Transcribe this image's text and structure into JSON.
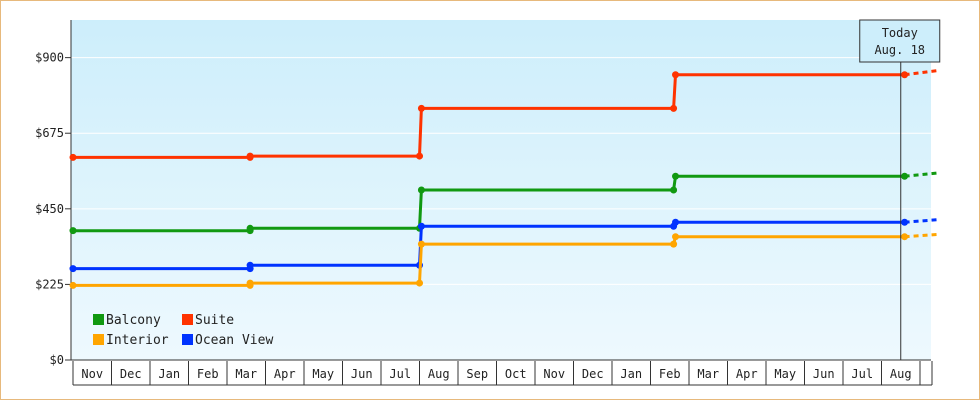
{
  "chart_data": {
    "type": "line",
    "title": "",
    "xlabel": "",
    "ylabel": "",
    "ylim": [
      0,
      1012
    ],
    "y_ticks": [
      "$0",
      "$225",
      "$450",
      "$675",
      "$900"
    ],
    "y_tick_values": [
      0,
      225,
      450,
      675,
      900
    ],
    "x_months": [
      "Nov",
      "Dec",
      "Jan",
      "Feb",
      "Mar",
      "Apr",
      "May",
      "Jun",
      "Jul",
      "Aug",
      "Sep",
      "Oct",
      "Nov",
      "Dec",
      "Jan",
      "Feb",
      "Mar",
      "Apr",
      "May",
      "Jun",
      "Jul",
      "Aug"
    ],
    "today_marker": {
      "line1": "Today",
      "line2": "Aug. 18",
      "month_index": 21.5
    },
    "grid": "horizontal",
    "legend_position": "bottom-left",
    "series": [
      {
        "name": "Suite",
        "color": "#ff3300",
        "points": [
          [
            0,
            603
          ],
          [
            4.6,
            603
          ],
          [
            4.6,
            607
          ],
          [
            9.0,
            607
          ],
          [
            9.05,
            749
          ],
          [
            15.6,
            749
          ],
          [
            15.65,
            849
          ],
          [
            21.6,
            849
          ]
        ],
        "markers": [
          0,
          1,
          2,
          3,
          4,
          5,
          6,
          7
        ],
        "projection": [
          21.6,
          849,
          22.5,
          862
        ]
      },
      {
        "name": "Balcony",
        "color": "#119911",
        "points": [
          [
            0,
            385
          ],
          [
            4.6,
            385
          ],
          [
            4.6,
            392
          ],
          [
            9.0,
            392
          ],
          [
            9.05,
            506
          ],
          [
            15.6,
            506
          ],
          [
            15.65,
            547
          ],
          [
            21.6,
            547
          ]
        ],
        "markers": [
          0,
          1,
          2,
          3,
          4,
          5,
          6,
          7
        ],
        "projection": [
          21.6,
          547,
          22.5,
          557
        ]
      },
      {
        "name": "Ocean View",
        "color": "#0033ff",
        "points": [
          [
            0,
            272
          ],
          [
            4.6,
            272
          ],
          [
            4.6,
            282
          ],
          [
            9.0,
            282
          ],
          [
            9.05,
            398
          ],
          [
            15.6,
            398
          ],
          [
            15.65,
            410
          ],
          [
            21.6,
            410
          ]
        ],
        "markers": [
          0,
          1,
          2,
          3,
          4,
          5,
          6,
          7
        ],
        "projection": [
          21.6,
          410,
          22.5,
          418
        ]
      },
      {
        "name": "Interior",
        "color": "#ffa500",
        "points": [
          [
            0,
            222
          ],
          [
            4.6,
            222
          ],
          [
            4.6,
            229
          ],
          [
            9.0,
            229
          ],
          [
            9.05,
            345
          ],
          [
            15.6,
            345
          ],
          [
            15.65,
            367
          ],
          [
            21.6,
            367
          ]
        ],
        "markers": [
          0,
          1,
          2,
          3,
          4,
          5,
          6,
          7
        ],
        "projection": [
          21.6,
          367,
          22.5,
          374
        ]
      }
    ],
    "legend": [
      {
        "name": "Balcony",
        "color": "#119911"
      },
      {
        "name": "Suite",
        "color": "#ff3300"
      },
      {
        "name": "Interior",
        "color": "#ffa500"
      },
      {
        "name": "Ocean View",
        "color": "#0033ff"
      }
    ]
  }
}
